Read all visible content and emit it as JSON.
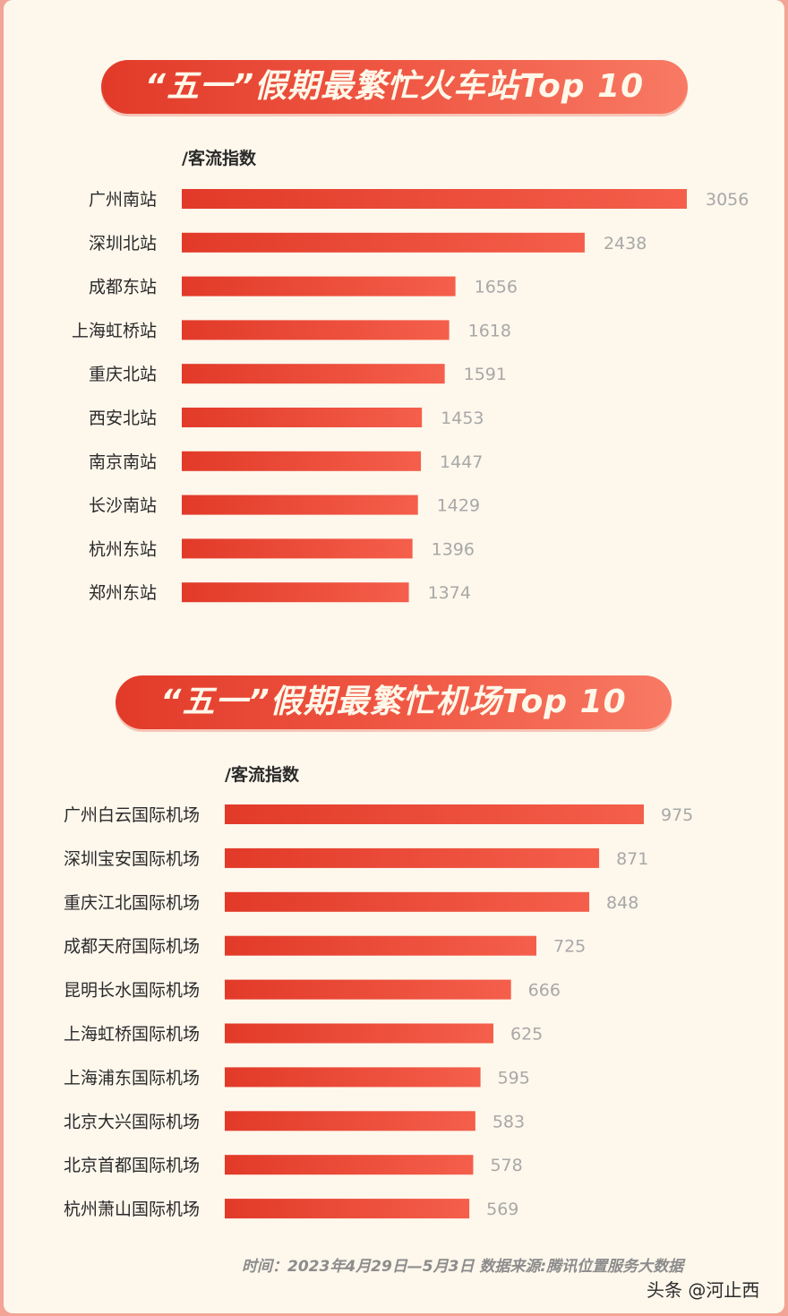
{
  "colors": {
    "bar_start": "#e23a29",
    "bar_end": "#f45f4b",
    "value_label": "#a8a8a8",
    "category_label": "#2a2a2a",
    "card_background": "#fdf7ec",
    "frame": "#f2a496"
  },
  "chart_data": [
    {
      "type": "bar",
      "orientation": "horizontal",
      "title": "“五一”假期最繁忙火车站Top 10",
      "unit_label": "/客流指数",
      "categories": [
        "广州南站",
        "深圳北站",
        "成都东站",
        "上海虹桥站",
        "重庆北站",
        "西安北站",
        "南京南站",
        "长沙南站",
        "杭州东站",
        "郑州东站"
      ],
      "values": [
        3056,
        2438,
        1656,
        1618,
        1591,
        1453,
        1447,
        1429,
        1396,
        1374
      ],
      "value_labels": [
        "3056",
        "2438",
        "1656",
        "1618",
        "1591",
        "1453",
        "1447",
        "1429",
        "1396",
        "1374"
      ],
      "xlim": [
        0,
        3056
      ],
      "grid": false,
      "legend": "none"
    },
    {
      "type": "bar",
      "orientation": "horizontal",
      "title": "“五一”假期最繁忙机场Top 10",
      "unit_label": "/客流指数",
      "categories": [
        "广州白云国际机场",
        "深圳宝安国际机场",
        "重庆江北国际机场",
        "成都天府国际机场",
        "昆明长水国际机场",
        "上海虹桥国际机场",
        "上海浦东国际机场",
        "北京大兴国际机场",
        "北京首都国际机场",
        "杭州萧山国际机场"
      ],
      "values": [
        975,
        871,
        848,
        725,
        666,
        625,
        595,
        583,
        578,
        569
      ],
      "value_labels": [
        "975",
        "871",
        "848",
        "725",
        "666",
        "625",
        "595",
        "583",
        "578",
        "569"
      ],
      "xlim": [
        0,
        975
      ],
      "grid": false,
      "legend": "none"
    }
  ],
  "footer": {
    "text": "时间：2023年4月29日—5月3日   数据来源:腾讯位置服务大数据"
  },
  "watermark": {
    "text": "头条 @河止西"
  }
}
